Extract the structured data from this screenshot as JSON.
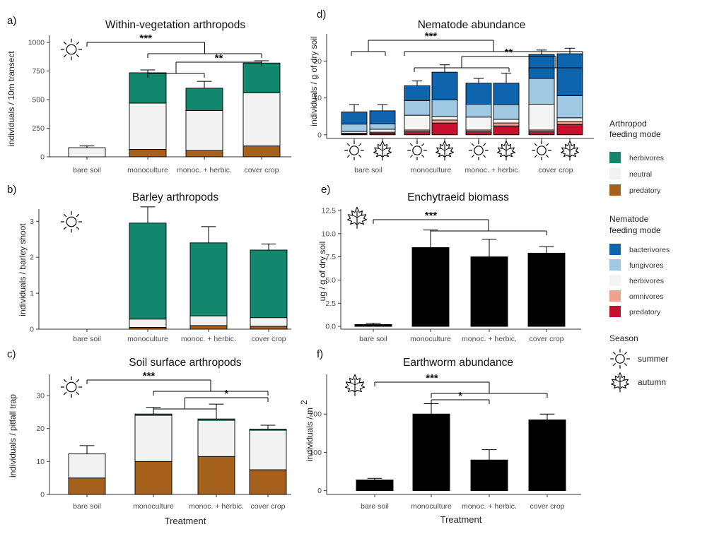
{
  "colors": {
    "herbivores": "#12876e",
    "neutral": "#f2f2f2",
    "predatory_arth": "#a5611c",
    "bacterivores": "#0f65ad",
    "fungivores": "#9fc9e2",
    "nem_herbivores": "#f4f4f4",
    "omnivores": "#f0a38a",
    "nem_predatory": "#c8102e",
    "black": "#000000"
  },
  "legend": {
    "arthropod_title_1": "Arthropod",
    "arthropod_title_2": "feeding mode",
    "arthropod_items": [
      {
        "label": "herbivores",
        "color": "#12876e"
      },
      {
        "label": "neutral",
        "color": "#f2f2f2"
      },
      {
        "label": "predatory",
        "color": "#a5611c"
      }
    ],
    "nematode_title_1": "Nematode",
    "nematode_title_2": "feeding mode",
    "nematode_items": [
      {
        "label": "bacterivores",
        "color": "#0f65ad"
      },
      {
        "label": "fungivores",
        "color": "#9fc9e2"
      },
      {
        "label": "herbivores",
        "color": "#f4f4f4"
      },
      {
        "label": "omnivores",
        "color": "#f0a38a"
      },
      {
        "label": "predatory",
        "color": "#c8102e"
      }
    ],
    "season_title": "Season",
    "season_items": [
      {
        "label": "summer",
        "icon": "sun-icon"
      },
      {
        "label": "autumn",
        "icon": "maple-leaf-icon"
      }
    ]
  },
  "chart_data": [
    {
      "id": "a",
      "letter": "a)",
      "type": "bar",
      "stacked": true,
      "title": "Within-vegetation arthropods",
      "ylabel": "individuals / 10m transect",
      "xlabel": "",
      "season_icon": "summer",
      "categories": [
        "bare soil",
        "monoculture",
        "monoc. + herbic.",
        "cover crop"
      ],
      "ylim": [
        0,
        1050
      ],
      "yticks": [
        0,
        250,
        500,
        750,
        1000
      ],
      "series": [
        {
          "name": "predatory",
          "color": "#a5611c",
          "values": [
            0,
            65,
            55,
            95
          ]
        },
        {
          "name": "neutral",
          "color": "#f2f2f2",
          "values": [
            80,
            405,
            350,
            465
          ]
        },
        {
          "name": "herbivores",
          "color": "#12876e",
          "values": [
            0,
            265,
            195,
            260
          ]
        }
      ],
      "errors": [
        15,
        25,
        60,
        20
      ],
      "significance": [
        {
          "label": "***",
          "from": [
            0
          ],
          "to": [
            1,
            2,
            3
          ]
        },
        {
          "label": "**",
          "from": [
            1,
            2
          ],
          "to": [
            3
          ]
        }
      ]
    },
    {
      "id": "b",
      "letter": "b)",
      "type": "bar",
      "stacked": true,
      "title": "Barley arthropods",
      "ylabel": "individuals / barley shoot",
      "xlabel": "",
      "season_icon": "summer",
      "categories": [
        "bare soil",
        "monoculture",
        "monoc. + herbic.",
        "cover crop"
      ],
      "ylim": [
        0,
        3.3
      ],
      "yticks": [
        0,
        1,
        2,
        3
      ],
      "series": [
        {
          "name": "predatory",
          "color": "#a5611c",
          "values": [
            0,
            0.05,
            0.1,
            0.08
          ]
        },
        {
          "name": "neutral",
          "color": "#f2f2f2",
          "values": [
            0,
            0.23,
            0.27,
            0.24
          ]
        },
        {
          "name": "herbivores",
          "color": "#12876e",
          "values": [
            0,
            2.67,
            2.03,
            1.88
          ]
        }
      ],
      "errors": [
        0,
        0.45,
        0.45,
        0.17
      ],
      "significance": []
    },
    {
      "id": "c",
      "letter": "c)",
      "type": "bar",
      "stacked": true,
      "title": "Soil surface arthropods",
      "ylabel": "individuals / pitfall trap",
      "xlabel": "Treatment",
      "season_icon": "summer",
      "categories": [
        "bare soil",
        "monoculture",
        "monoc. + herbic.",
        "cover crop"
      ],
      "ylim": [
        0,
        36
      ],
      "yticks": [
        0,
        10,
        20,
        30
      ],
      "series": [
        {
          "name": "predatory",
          "color": "#a5611c",
          "values": [
            5,
            10,
            11.5,
            7.5
          ]
        },
        {
          "name": "neutral",
          "color": "#f2f2f2",
          "values": [
            7.3,
            14,
            11,
            12
          ]
        },
        {
          "name": "herbivores",
          "color": "#12876e",
          "values": [
            0,
            0.4,
            0.4,
            0.3
          ]
        }
      ],
      "errors": [
        2.5,
        2,
        4.5,
        1.2
      ],
      "significance": [
        {
          "label": "***",
          "from": [
            0
          ],
          "to": [
            1,
            2,
            3
          ]
        },
        {
          "label": "*",
          "from": [
            1,
            2
          ],
          "to": [
            3
          ]
        }
      ]
    },
    {
      "id": "d",
      "letter": "d)",
      "type": "bar",
      "stacked": true,
      "title": "Nematode abundance",
      "ylabel": "individuals / g of dry soil",
      "xlabel": "",
      "groups": [
        "bare soil",
        "monoculture",
        "monoc. + herbic.",
        "cover crop"
      ],
      "bar_seasons": [
        "summer",
        "autumn",
        "summer",
        "autumn",
        "summer",
        "autumn",
        "summer",
        "autumn"
      ],
      "ylim": [
        -1,
        27
      ],
      "yticks": [
        0,
        10,
        20
      ],
      "series": [
        {
          "name": "predatory",
          "color": "#c8102e",
          "values": [
            0.2,
            0.4,
            0.8,
            3.2,
            0.8,
            2.4,
            0.8,
            2.8
          ]
        },
        {
          "name": "omnivores",
          "color": "#f0a38a",
          "values": [
            0.2,
            0.3,
            0.5,
            0.8,
            0.5,
            0.8,
            0.5,
            0.8
          ]
        },
        {
          "name": "herbivores",
          "color": "#f4f4f4",
          "values": [
            0.5,
            0.8,
            4.0,
            1.0,
            3.5,
            1.0,
            7.0,
            1.0
          ]
        },
        {
          "name": "fungivores",
          "color": "#9fc9e2",
          "values": [
            2.0,
            1.5,
            4.0,
            4.5,
            3.5,
            4.0,
            7.0,
            6.0
          ]
        },
        {
          "name": "bacterivores",
          "color": "#0f65ad",
          "values": [
            3.3,
            3.5,
            4.0,
            7.5,
            5.7,
            5.8,
            6.5,
            11.4
          ]
        }
      ],
      "errors": [
        2,
        1.7,
        1.3,
        2,
        1.3,
        2.7,
        1.2,
        1.5
      ],
      "significance": [
        {
          "label": "***",
          "from": [
            0
          ],
          "to": [
            1,
            2,
            3
          ]
        },
        {
          "label": "**",
          "from": [
            1,
            2
          ],
          "to": [
            3
          ]
        }
      ]
    },
    {
      "id": "e",
      "letter": "e)",
      "type": "bar",
      "stacked": false,
      "title": "Enchytraeid biomass",
      "ylabel": "ug / g of dry soil",
      "xlabel": "",
      "season_icon": "autumn",
      "categories": [
        "bare soil",
        "monoculture",
        "monoc. + herbic.",
        "cover crop"
      ],
      "ylim": [
        -0.3,
        12.5
      ],
      "yticks": [
        0.0,
        2.5,
        5.0,
        7.5,
        10.0,
        12.5
      ],
      "ytick_labels": [
        "0.0",
        "2.5",
        "5.0",
        "7.5",
        "10.0",
        "12.5"
      ],
      "values": [
        0.2,
        8.5,
        7.5,
        7.9
      ],
      "errors": [
        0.15,
        1.9,
        1.9,
        0.7
      ],
      "color": "#000000",
      "significance": [
        {
          "label": "***",
          "from": [
            0
          ],
          "to": [
            1,
            2,
            3
          ]
        }
      ]
    },
    {
      "id": "f",
      "letter": "f)",
      "type": "bar",
      "stacked": false,
      "title": "Earthworm abundance",
      "ylabel": "individuals / m",
      "ylabel_sup": "2",
      "xlabel": "Treatment",
      "season_icon": "autumn",
      "categories": [
        "bare soil",
        "monoculture",
        "monoc. + herbic.",
        "cover crop"
      ],
      "ylim": [
        -10,
        300
      ],
      "yticks": [
        0,
        100,
        200
      ],
      "values": [
        28,
        200,
        80,
        185
      ],
      "errors": [
        4,
        27,
        27,
        15
      ],
      "color": "#000000",
      "significance": [
        {
          "label": "***",
          "from": [
            0
          ],
          "to": [
            1,
            2,
            3
          ]
        },
        {
          "label": "*",
          "from": [
            1
          ],
          "to": [
            2
          ]
        }
      ]
    }
  ]
}
